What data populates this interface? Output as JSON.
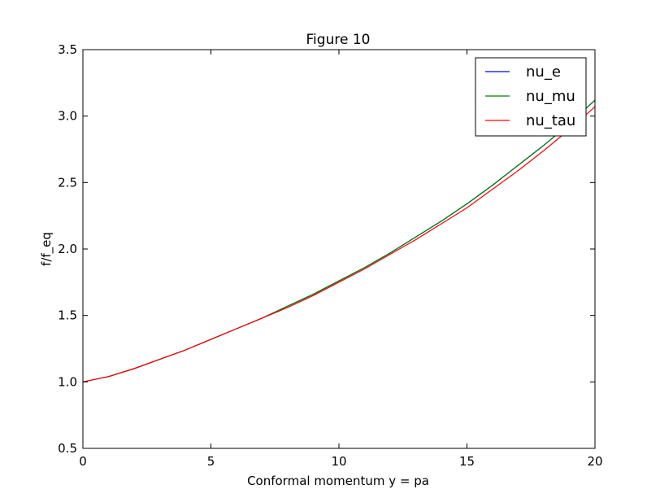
{
  "chart_data": {
    "type": "line",
    "title": "Figure 10",
    "xlabel": "Conformal momentum y = pa",
    "ylabel": "f/f_eq",
    "xlim": [
      0,
      20
    ],
    "ylim": [
      0.5,
      3.5
    ],
    "xticks": [
      0,
      5,
      10,
      15,
      20
    ],
    "xtick_labels": [
      "0",
      "5",
      "10",
      "15",
      "20"
    ],
    "yticks": [
      0.5,
      1.0,
      1.5,
      2.0,
      2.5,
      3.0,
      3.5
    ],
    "ytick_labels": [
      "0.5",
      "1.0",
      "1.5",
      "2.0",
      "2.5",
      "3.0",
      "3.5"
    ],
    "grid": false,
    "legend_position": "top-right",
    "x": [
      0,
      1,
      2,
      3,
      4,
      5,
      6,
      7,
      8,
      9,
      10,
      11,
      12,
      13,
      14,
      15,
      16,
      17,
      18,
      19,
      20
    ],
    "series": [
      {
        "name": "nu_e",
        "color": "#0000ff",
        "values": [
          1.0,
          1.04,
          1.1,
          1.17,
          1.24,
          1.32,
          1.4,
          1.48,
          1.57,
          1.66,
          1.76,
          1.86,
          1.97,
          2.09,
          2.21,
          2.34,
          2.48,
          2.63,
          2.78,
          2.94,
          3.12
        ]
      },
      {
        "name": "nu_mu",
        "color": "#008000",
        "values": [
          1.0,
          1.04,
          1.1,
          1.17,
          1.24,
          1.32,
          1.4,
          1.48,
          1.57,
          1.66,
          1.76,
          1.86,
          1.97,
          2.09,
          2.21,
          2.34,
          2.48,
          2.63,
          2.78,
          2.94,
          3.12
        ]
      },
      {
        "name": "nu_tau",
        "color": "#ff0000",
        "values": [
          1.0,
          1.04,
          1.1,
          1.17,
          1.24,
          1.32,
          1.4,
          1.48,
          1.56,
          1.65,
          1.75,
          1.85,
          1.96,
          2.07,
          2.19,
          2.31,
          2.45,
          2.59,
          2.74,
          2.9,
          3.07
        ]
      }
    ]
  }
}
